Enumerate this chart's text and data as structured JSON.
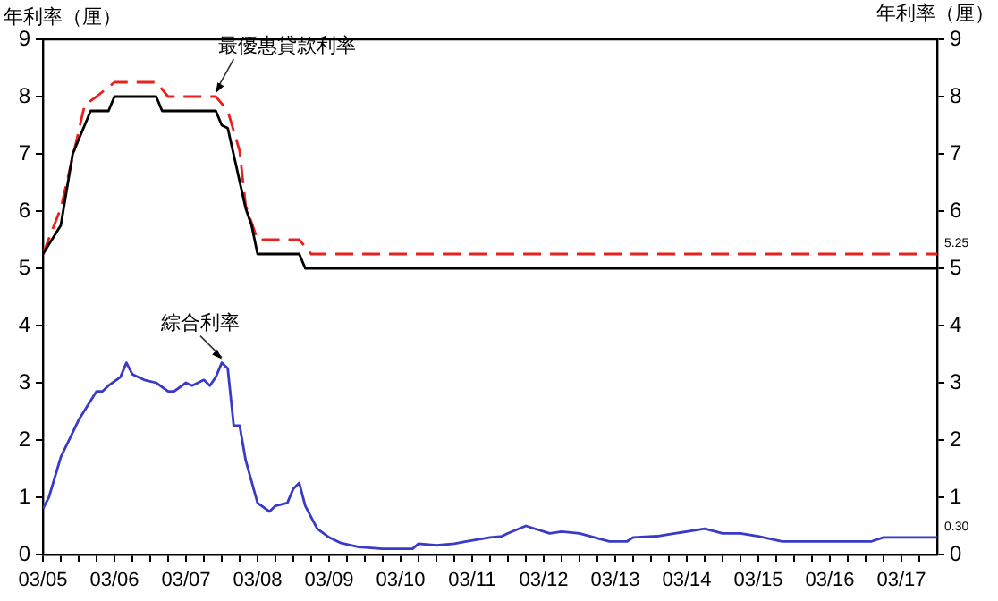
{
  "chart_data": {
    "type": "line",
    "ylabel": "年利率（厘）",
    "y2label": "年利率（厘）",
    "xlim": [
      "2005-03",
      "2017-09"
    ],
    "ylim": [
      0,
      9
    ],
    "yticks": [
      0,
      1,
      2,
      3,
      4,
      5,
      6,
      7,
      8,
      9
    ],
    "y2lim": [
      0,
      9
    ],
    "y2ticks": [
      0,
      1,
      2,
      3,
      4,
      5,
      6,
      7,
      8,
      9
    ],
    "xticks": [
      {
        "value": "2005-03",
        "label": "03/05"
      },
      {
        "value": "2005-06",
        "label": null
      },
      {
        "value": "2005-09",
        "label": null
      },
      {
        "value": "2005-12",
        "label": null
      },
      {
        "value": "2006-03",
        "label": "03/06"
      },
      {
        "value": "2006-06",
        "label": null
      },
      {
        "value": "2006-09",
        "label": null
      },
      {
        "value": "2006-12",
        "label": null
      },
      {
        "value": "2007-03",
        "label": "03/07"
      },
      {
        "value": "2007-06",
        "label": null
      },
      {
        "value": "2007-09",
        "label": null
      },
      {
        "value": "2007-12",
        "label": null
      },
      {
        "value": "2008-03",
        "label": "03/08"
      },
      {
        "value": "2008-06",
        "label": null
      },
      {
        "value": "2008-09",
        "label": null
      },
      {
        "value": "2008-12",
        "label": null
      },
      {
        "value": "2009-03",
        "label": "03/09"
      },
      {
        "value": "2009-06",
        "label": null
      },
      {
        "value": "2009-09",
        "label": null
      },
      {
        "value": "2009-12",
        "label": null
      },
      {
        "value": "2010-03",
        "label": "03/10"
      },
      {
        "value": "2010-06",
        "label": null
      },
      {
        "value": "2010-09",
        "label": null
      },
      {
        "value": "2010-12",
        "label": null
      },
      {
        "value": "2011-03",
        "label": "03/11"
      },
      {
        "value": "2011-06",
        "label": null
      },
      {
        "value": "2011-09",
        "label": null
      },
      {
        "value": "2011-12",
        "label": null
      },
      {
        "value": "2012-03",
        "label": "03/12"
      },
      {
        "value": "2012-06",
        "label": null
      },
      {
        "value": "2012-09",
        "label": null
      },
      {
        "value": "2012-12",
        "label": null
      },
      {
        "value": "2013-03",
        "label": "03/13"
      },
      {
        "value": "2013-06",
        "label": null
      },
      {
        "value": "2013-09",
        "label": null
      },
      {
        "value": "2013-12",
        "label": null
      },
      {
        "value": "2014-03",
        "label": "03/14"
      },
      {
        "value": "2014-06",
        "label": null
      },
      {
        "value": "2014-09",
        "label": null
      },
      {
        "value": "2014-12",
        "label": null
      },
      {
        "value": "2015-03",
        "label": "03/15"
      },
      {
        "value": "2015-06",
        "label": null
      },
      {
        "value": "2015-09",
        "label": null
      },
      {
        "value": "2015-12",
        "label": null
      },
      {
        "value": "2016-03",
        "label": "03/16"
      },
      {
        "value": "2016-06",
        "label": null
      },
      {
        "value": "2016-09",
        "label": null
      },
      {
        "value": "2016-12",
        "label": null
      },
      {
        "value": "2017-03",
        "label": "03/17"
      },
      {
        "value": "2017-06",
        "label": null
      }
    ],
    "grid": false,
    "legend": false,
    "marker": "none",
    "series": [
      {
        "color": "#000000",
        "line_style": "solid",
        "x": [
          "2005-03",
          "2005-06",
          "2005-08",
          "2005-11",
          "2006-02",
          "2006-03",
          "2006-10",
          "2006-11",
          "2007-08",
          "2007-09",
          "2007-10",
          "2008-01",
          "2008-02",
          "2008-03",
          "2008-10",
          "2008-11",
          "2017-09"
        ],
        "values": [
          5.25,
          5.75,
          7.0,
          7.75,
          7.75,
          8.0,
          8.0,
          7.75,
          7.75,
          7.5,
          7.45,
          6.05,
          5.75,
          5.25,
          5.25,
          5.0,
          5.0
        ]
      },
      {
        "color": "#e8201e",
        "line_style": "dashed",
        "x": [
          "2005-03",
          "2005-06",
          "2005-10",
          "2005-12",
          "2006-03",
          "2006-10",
          "2006-12",
          "2007-08",
          "2007-10",
          "2007-12",
          "2008-01",
          "2008-03",
          "2008-10",
          "2008-12",
          "2017-09"
        ],
        "values": [
          5.25,
          6.05,
          7.85,
          8.0,
          8.25,
          8.25,
          8.0,
          8.0,
          7.75,
          7.05,
          6.1,
          5.5,
          5.5,
          5.25,
          5.25
        ]
      },
      {
        "color": "#3a3ac8",
        "line_style": "solid",
        "x": [
          "2005-03",
          "2005-04",
          "2005-06",
          "2005-09",
          "2005-12",
          "2006-01",
          "2006-02",
          "2006-04",
          "2006-05",
          "2006-06",
          "2006-08",
          "2006-10",
          "2006-12",
          "2007-01",
          "2007-03",
          "2007-04",
          "2007-06",
          "2007-07",
          "2007-08",
          "2007-09",
          "2007-10",
          "2007-11",
          "2007-12",
          "2008-01",
          "2008-03",
          "2008-05",
          "2008-06",
          "2008-08",
          "2008-09",
          "2008-10",
          "2008-11",
          "2009-01",
          "2009-03",
          "2009-05",
          "2009-08",
          "2009-12",
          "2010-05",
          "2010-06",
          "2010-09",
          "2010-12",
          "2011-02",
          "2011-06",
          "2011-08",
          "2011-09",
          "2011-12",
          "2012-04",
          "2012-06",
          "2012-09",
          "2013-02",
          "2013-05",
          "2013-06",
          "2013-10",
          "2014-01",
          "2014-03",
          "2014-06",
          "2014-09",
          "2014-12",
          "2015-03",
          "2015-07",
          "2016-01",
          "2016-05",
          "2016-10",
          "2016-12",
          "2017-09"
        ],
        "values": [
          0.8,
          1.0,
          1.7,
          2.35,
          2.85,
          2.85,
          2.95,
          3.1,
          3.35,
          3.15,
          3.05,
          3.0,
          2.85,
          2.85,
          3.0,
          2.95,
          3.05,
          2.95,
          3.1,
          3.35,
          3.25,
          2.25,
          2.25,
          1.65,
          0.9,
          0.75,
          0.85,
          0.9,
          1.15,
          1.25,
          0.85,
          0.45,
          0.3,
          0.2,
          0.13,
          0.1,
          0.1,
          0.19,
          0.16,
          0.19,
          0.23,
          0.3,
          0.32,
          0.37,
          0.5,
          0.37,
          0.4,
          0.37,
          0.23,
          0.23,
          0.3,
          0.32,
          0.37,
          0.4,
          0.45,
          0.37,
          0.37,
          0.32,
          0.23,
          0.23,
          0.23,
          0.23,
          0.3,
          0.3
        ]
      }
    ],
    "annotations": [
      {
        "text": "最優惠貸款利率",
        "x": "2007-08",
        "y": 8.0
      },
      {
        "text": "綜合利率",
        "x": "2007-09",
        "y": 3.35
      },
      {
        "text": "5.25",
        "x": "2017-09",
        "y": 5.25
      },
      {
        "text": "0.30",
        "x": "2017-09",
        "y": 0.3
      }
    ]
  }
}
